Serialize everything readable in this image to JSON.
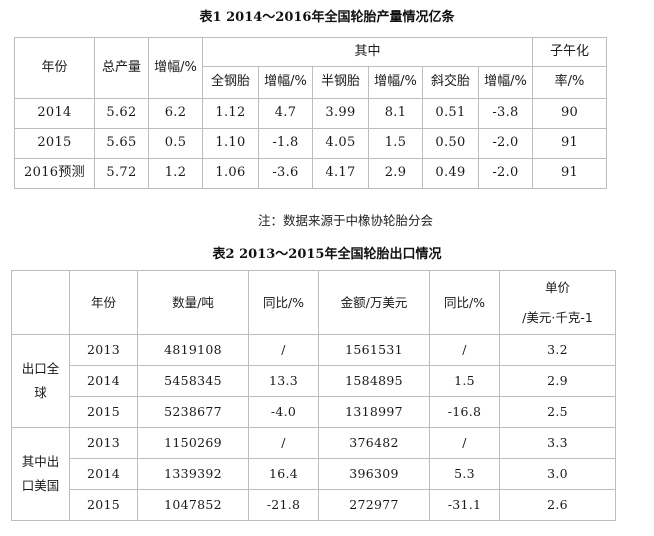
{
  "table1": {
    "caption": "表1  2014～2016年全国轮胎产量情况亿条",
    "headers": {
      "year": "年份",
      "total": "总产量",
      "growth": "增幅/%",
      "group": "其中",
      "meridian_top": "子午化",
      "meridian_bottom": "率/%",
      "sub": [
        "全钢胎",
        "增幅/%",
        "半钢胎",
        "增幅/%",
        "斜交胎",
        "增幅/%"
      ]
    },
    "rows": [
      [
        "2014",
        "5.62",
        "6.2",
        "1.12",
        "4.7",
        "3.99",
        "8.1",
        "0.51",
        "-3.8",
        "90"
      ],
      [
        "2015",
        "5.65",
        "0.5",
        "1.10",
        "-1.8",
        "4.05",
        "1.5",
        "0.50",
        "-2.0",
        "91"
      ],
      [
        "2016预测",
        "5.72",
        "1.2",
        "1.06",
        "-3.6",
        "4.17",
        "2.9",
        "0.49",
        "-2.0",
        "91"
      ]
    ]
  },
  "note": "注：数据来源于中橡协轮胎分会",
  "table2": {
    "caption": "表2  2013～2015年全国轮胎出口情况",
    "headers": {
      "year": "年份",
      "qty": "数量/吨",
      "yoy1": "同比/%",
      "amount": "金额/万美元",
      "yoy2": "同比/%",
      "price_top": "单价",
      "price_bottom": "/美元·千克-1"
    },
    "groups": [
      {
        "label_lines": [
          "出口全",
          "球"
        ],
        "rows": [
          [
            "2013",
            "4819108",
            "/",
            "1561531",
            "/",
            "3.2"
          ],
          [
            "2014",
            "5458345",
            "13.3",
            "1584895",
            "1.5",
            "2.9"
          ],
          [
            "2015",
            "5238677",
            "-4.0",
            "1318997",
            "-16.8",
            "2.5"
          ]
        ]
      },
      {
        "label_lines": [
          "其中出",
          "口美国"
        ],
        "rows": [
          [
            "2013",
            "1150269",
            "/",
            "376482",
            "/",
            "3.3"
          ],
          [
            "2014",
            "1339392",
            "16.4",
            "396309",
            "5.3",
            "3.0"
          ],
          [
            "2015",
            "1047852",
            "-21.8",
            "272977",
            "-31.1",
            "2.6"
          ]
        ]
      }
    ]
  }
}
